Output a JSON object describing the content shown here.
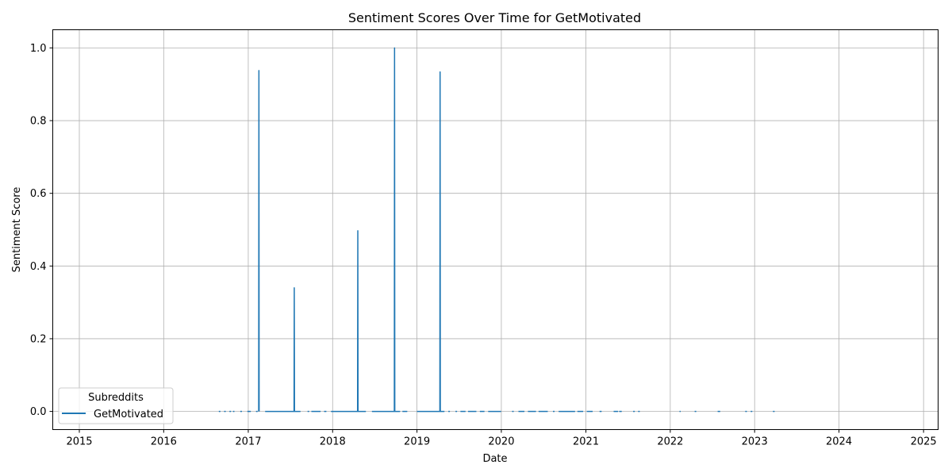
{
  "chart_data": {
    "type": "line",
    "title": "Sentiment Scores Over Time for GetMotivated",
    "xlabel": "Date",
    "ylabel": "Sentiment Score",
    "xlim": [
      "2014-09-08",
      "2025-03-05"
    ],
    "ylim": [
      -0.05,
      1.05
    ],
    "x_ticks": [
      "2015",
      "2016",
      "2017",
      "2018",
      "2019",
      "2020",
      "2021",
      "2022",
      "2023",
      "2024",
      "2025"
    ],
    "y_ticks": [
      "0.0",
      "0.2",
      "0.4",
      "0.6",
      "0.8",
      "1.0"
    ],
    "grid": true,
    "legend": {
      "title": "Subreddits",
      "placement": "lower-left"
    },
    "colors": {
      "series": "#1f77b4",
      "grid": "#b0b0b0",
      "axes": "#000000"
    },
    "series": [
      {
        "name": "GetMotivated",
        "segments": [
          [
            [
              "2016-08-30",
              0.0
            ]
          ],
          [
            [
              "2016-09-22",
              0.0
            ]
          ],
          [
            [
              "2016-10-15",
              0.0
            ]
          ],
          [
            [
              "2016-10-27",
              0.0
            ],
            [
              "2016-11-02",
              0.0
            ]
          ],
          [
            [
              "2016-12-01",
              0.0
            ]
          ],
          [
            [
              "2016-12-28",
              0.0
            ],
            [
              "2017-01-12",
              0.0
            ]
          ],
          [
            [
              "2017-02-07",
              0.0
            ]
          ],
          [
            [
              "2017-02-15",
              0.0
            ],
            [
              "2017-02-16",
              0.938
            ],
            [
              "2017-02-17",
              0.0
            ]
          ],
          [
            [
              "2017-03-15",
              0.0
            ],
            [
              "2017-07-18",
              0.0
            ],
            [
              "2017-07-19",
              0.34
            ],
            [
              "2017-07-20",
              0.0
            ],
            [
              "2017-08-15",
              0.0
            ]
          ],
          [
            [
              "2017-09-18",
              0.0
            ]
          ],
          [
            [
              "2017-10-01",
              0.0
            ],
            [
              "2017-11-10",
              0.0
            ]
          ],
          [
            [
              "2017-11-25",
              0.0
            ],
            [
              "2017-12-05",
              0.0
            ]
          ],
          [
            [
              "2017-12-25",
              0.0
            ],
            [
              "2018-04-19",
              0.0
            ],
            [
              "2018-04-20",
              0.497
            ],
            [
              "2018-04-21",
              0.0
            ],
            [
              "2018-05-25",
              0.0
            ]
          ],
          [
            [
              "2018-06-20",
              0.0
            ],
            [
              "2018-09-25",
              0.0
            ],
            [
              "2018-09-26",
              1.0
            ],
            [
              "2018-09-27",
              0.0
            ],
            [
              "2018-10-20",
              0.0
            ]
          ],
          [
            [
              "2018-10-30",
              0.0
            ],
            [
              "2018-11-20",
              0.0
            ]
          ],
          [
            [
              "2019-01-01",
              0.0
            ],
            [
              "2019-04-10",
              0.0
            ],
            [
              "2019-04-11",
              0.934
            ],
            [
              "2019-04-12",
              0.0
            ],
            [
              "2019-04-30",
              0.0
            ]
          ],
          [
            [
              "2019-05-20",
              0.0
            ]
          ],
          [
            [
              "2019-06-20",
              0.0
            ]
          ],
          [
            [
              "2019-07-08",
              0.0
            ],
            [
              "2019-07-30",
              0.0
            ]
          ],
          [
            [
              "2019-08-10",
              0.0
            ],
            [
              "2019-09-15",
              0.0
            ]
          ],
          [
            [
              "2019-09-30",
              0.0
            ],
            [
              "2019-10-20",
              0.0
            ]
          ],
          [
            [
              "2019-11-05",
              0.0
            ],
            [
              "2019-12-31",
              0.0
            ]
          ],
          [
            [
              "2020-02-20",
              0.0
            ]
          ],
          [
            [
              "2020-03-15",
              0.0
            ],
            [
              "2020-04-10",
              0.0
            ]
          ],
          [
            [
              "2020-04-25",
              0.0
            ],
            [
              "2020-05-30",
              0.0
            ]
          ],
          [
            [
              "2020-06-10",
              0.0
            ],
            [
              "2020-07-20",
              0.0
            ]
          ],
          [
            [
              "2020-08-15",
              0.0
            ]
          ],
          [
            [
              "2020-09-05",
              0.0
            ],
            [
              "2020-11-15",
              0.0
            ]
          ],
          [
            [
              "2020-11-25",
              0.0
            ],
            [
              "2020-12-20",
              0.0
            ]
          ],
          [
            [
              "2021-01-05",
              0.0
            ],
            [
              "2021-01-30",
              0.0
            ]
          ],
          [
            [
              "2021-03-01",
              0.0
            ],
            [
              "2021-03-10",
              0.0
            ]
          ],
          [
            [
              "2021-05-01",
              0.0
            ],
            [
              "2021-05-20",
              0.0
            ]
          ],
          [
            [
              "2021-05-25",
              0.0
            ],
            [
              "2021-06-05",
              0.0
            ]
          ],
          [
            [
              "2021-07-28",
              0.0
            ]
          ],
          [
            [
              "2021-08-15",
              0.0
            ],
            [
              "2021-08-22",
              0.0
            ]
          ],
          [
            [
              "2022-02-10",
              0.0
            ],
            [
              "2022-02-15",
              0.0
            ]
          ],
          [
            [
              "2022-04-20",
              0.0
            ]
          ],
          [
            [
              "2022-07-25",
              0.0
            ],
            [
              "2022-08-05",
              0.0
            ]
          ],
          [
            [
              "2022-11-25",
              0.0
            ]
          ],
          [
            [
              "2022-12-15",
              0.0
            ],
            [
              "2022-12-22",
              0.0
            ]
          ],
          [
            [
              "2023-03-25",
              0.0
            ]
          ]
        ]
      }
    ]
  }
}
